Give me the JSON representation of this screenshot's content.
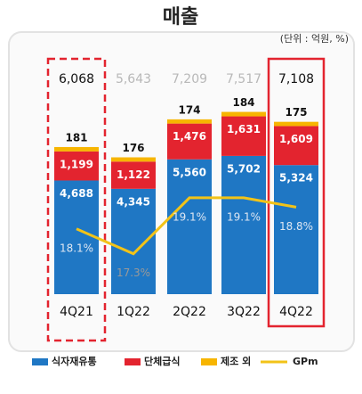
{
  "chart_data": {
    "type": "stacked_bar_line",
    "title": "매출",
    "subtitle": "(단위 : 억원, %)",
    "categories": [
      "4Q21",
      "1Q22",
      "2Q22",
      "3Q22",
      "4Q22"
    ],
    "series": [
      {
        "name": "식자재유통",
        "color": "#1f77c4",
        "values": [
          4688,
          4345,
          5560,
          5702,
          5324
        ],
        "value_labels": [
          "4,688",
          "4,345",
          "5,560",
          "5,702",
          "5,324"
        ]
      },
      {
        "name": "단체급식",
        "color": "#e3242f",
        "values": [
          1199,
          1122,
          1476,
          1631,
          1609
        ],
        "value_labels": [
          "1,199",
          "1,122",
          "1,476",
          "1,631",
          "1,609"
        ]
      },
      {
        "name": "제조 외",
        "color": "#f7b500",
        "values": [
          181,
          176,
          174,
          184,
          175
        ]
      },
      {
        "name": "GPm",
        "type": "line",
        "axis": "y2",
        "color": "#f2c318",
        "values": [
          18.1,
          17.3,
          19.1,
          19.1,
          18.8
        ],
        "value_labels": [
          "18.1%",
          "17.3%",
          "19.1%",
          "19.1%",
          "18.8%"
        ]
      }
    ],
    "totals": {
      "values": [
        6068,
        5643,
        7209,
        7517,
        7108
      ],
      "value_labels": [
        "6,068",
        "5,643",
        "7,209",
        "7,517",
        "7,108"
      ]
    },
    "highlight": [
      0,
      4
    ],
    "ylim": [
      0,
      10000
    ],
    "y2lim": [
      16,
      23.8
    ]
  }
}
